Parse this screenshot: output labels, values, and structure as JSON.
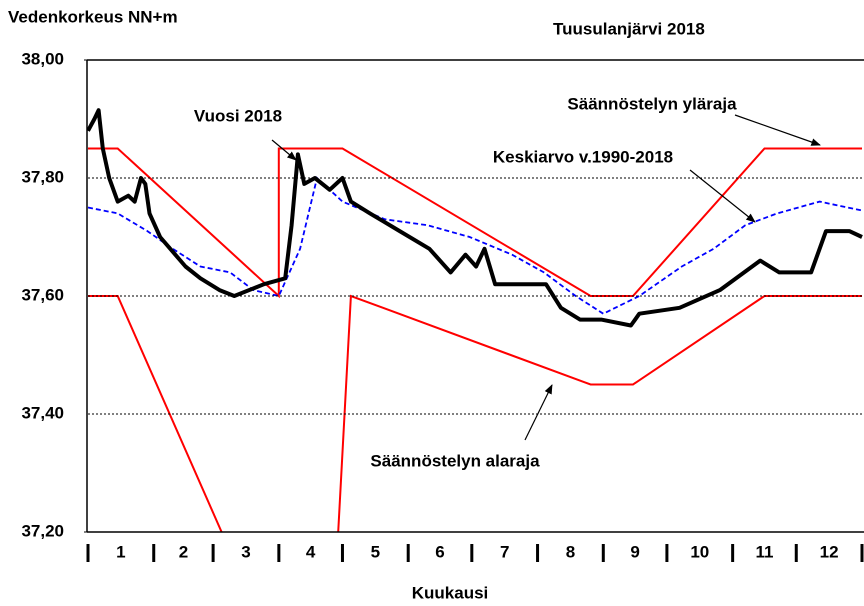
{
  "chart_data": {
    "type": "line",
    "title": "Tuusulanjärvi  2018",
    "y_label": "Vedenkorkeus  NN+m",
    "x_label": "Kuukausi",
    "categories": [
      "1",
      "2",
      "3",
      "4",
      "5",
      "6",
      "7",
      "8",
      "9",
      "10",
      "11",
      "12"
    ],
    "xlim": [
      0,
      365
    ],
    "xticks": [
      0,
      31,
      59,
      90,
      120,
      151,
      181,
      212,
      243,
      273,
      304,
      334,
      365
    ],
    "ylim": [
      37.2,
      38.0
    ],
    "yticks": [
      {
        "value": 37.2,
        "label": "37,20"
      },
      {
        "value": 37.4,
        "label": "37,40"
      },
      {
        "value": 37.6,
        "label": "37,60"
      },
      {
        "value": 37.8,
        "label": "37,80"
      },
      {
        "value": 38.0,
        "label": "38,00"
      }
    ],
    "grid": true,
    "series": [
      {
        "name": "Säännöstelyn yläraja",
        "color": "#ff0000",
        "style": "solid",
        "x": [
          0,
          14,
          90,
          90,
          120,
          237,
          257,
          319,
          365
        ],
        "values": [
          37.85,
          37.85,
          37.6,
          37.85,
          37.85,
          37.6,
          37.6,
          37.85,
          37.85
        ]
      },
      {
        "name": "Säännöstelyn alaraja",
        "color": "#ff0000",
        "style": "solid",
        "x": [
          0,
          14,
          63,
          90,
          118,
          124,
          237,
          257,
          319,
          365
        ],
        "values": [
          37.6,
          37.6,
          37.2,
          null,
          37.2,
          37.6,
          37.45,
          37.45,
          37.6,
          37.6
        ]
      },
      {
        "name": "Keskiarvo v.1990-2018",
        "color": "#0000ff",
        "style": "dashed",
        "x": [
          0,
          14,
          28,
          40,
          53,
          67,
          78,
          90,
          100,
          108,
          120,
          140,
          160,
          180,
          200,
          215,
          230,
          243,
          260,
          280,
          295,
          310,
          325,
          345,
          365
        ],
        "values": [
          37.75,
          37.74,
          37.71,
          37.68,
          37.65,
          37.64,
          37.61,
          37.6,
          37.68,
          37.8,
          37.76,
          37.73,
          37.72,
          37.7,
          37.67,
          37.64,
          37.6,
          37.57,
          37.6,
          37.65,
          37.68,
          37.72,
          37.74,
          37.76,
          37.745
        ]
      },
      {
        "name": "Vuosi 2018",
        "color": "#000000",
        "style": "thick",
        "x": [
          0,
          3,
          5,
          7,
          10,
          14,
          19,
          22,
          25,
          27,
          29,
          34,
          46,
          53,
          62,
          69,
          83,
          93,
          96,
          99,
          102,
          107,
          114,
          120,
          124,
          133,
          147,
          161,
          171,
          178,
          183,
          187,
          192,
          216,
          223,
          232,
          242,
          256,
          260,
          279,
          298,
          317,
          326,
          341,
          348,
          359,
          365
        ],
        "values": [
          37.88,
          37.9,
          37.915,
          37.85,
          37.8,
          37.76,
          37.77,
          37.76,
          37.8,
          37.79,
          37.74,
          37.7,
          37.65,
          37.63,
          37.61,
          37.6,
          37.62,
          37.63,
          37.72,
          37.84,
          37.79,
          37.8,
          37.78,
          37.8,
          37.76,
          37.74,
          37.71,
          37.68,
          37.64,
          37.67,
          37.65,
          37.68,
          37.62,
          37.62,
          37.58,
          37.56,
          37.56,
          37.55,
          37.57,
          37.58,
          37.61,
          37.66,
          37.64,
          37.64,
          37.71,
          37.71,
          37.7
        ]
      }
    ]
  }
}
